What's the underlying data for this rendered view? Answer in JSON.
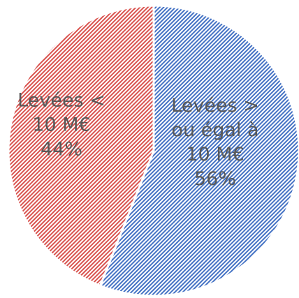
{
  "chart_data": {
    "type": "pie",
    "slices": [
      {
        "key": "big",
        "label_lines": [
          "Levées >",
          "ou égal à",
          "10 M€"
        ],
        "percent_label": "56%",
        "value": 56,
        "color": "#4472c4"
      },
      {
        "key": "small",
        "label_lines": [
          "Levées <",
          "10 M€"
        ],
        "percent_label": "44%",
        "value": 44,
        "color": "#d9534f"
      }
    ],
    "start_angle_deg": 0,
    "direction": "clockwise",
    "fill_pattern": "diagonal-hatch"
  }
}
